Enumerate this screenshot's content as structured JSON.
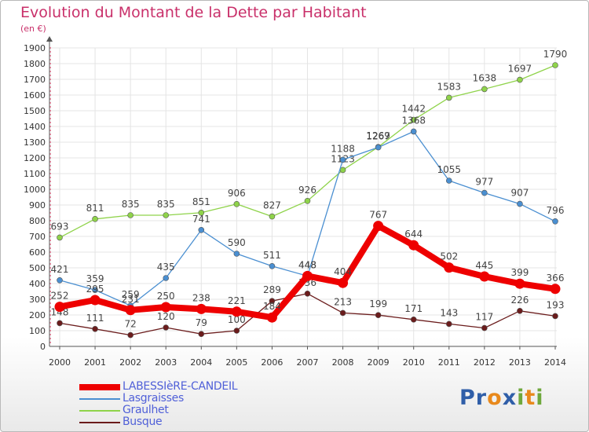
{
  "header": {
    "title": "Evolution du Montant de la Dette par Habitant",
    "unit": "(en €)"
  },
  "logo": {
    "text": "Proxiti",
    "colors": [
      "#2f5ea8",
      "#2f5ea8",
      "#e8891c",
      "#2f5ea8",
      "#6fa83c",
      "#e8891c",
      "#6fa83c"
    ]
  },
  "chart_data": {
    "type": "line",
    "title": "Evolution du Montant de la Dette par Habitant",
    "ylabel": "(en €)",
    "xlabel": "",
    "x": [
      "2000",
      "2001",
      "2002",
      "2003",
      "2004",
      "2005",
      "2006",
      "2007",
      "2008",
      "2009",
      "2010",
      "2011",
      "2012",
      "2013",
      "2014"
    ],
    "ylim": [
      0,
      1900
    ],
    "yticks": [
      0,
      100,
      200,
      300,
      400,
      500,
      600,
      700,
      800,
      900,
      1000,
      1100,
      1200,
      1300,
      1400,
      1500,
      1600,
      1700,
      1800,
      1900
    ],
    "grid": true,
    "legend_position": "bottom-left",
    "series": [
      {
        "name": "Busque",
        "color": "#6b1c1c",
        "values": [
          148,
          111,
          72,
          120,
          79,
          100,
          289,
          336,
          213,
          199,
          171,
          143,
          117,
          226,
          193
        ],
        "labels": [
          "148",
          "111",
          "72",
          "120",
          "79",
          "100",
          "289",
          "336",
          "213",
          "199",
          "171",
          "143",
          "117",
          "226",
          "193"
        ]
      },
      {
        "name": "Graulhet",
        "color": "#8fd34a",
        "values": [
          693,
          811,
          835,
          835,
          851,
          906,
          827,
          926,
          1123,
          1269,
          1442,
          1583,
          1638,
          1697,
          1790
        ],
        "labels": [
          "693",
          "811",
          "835",
          "835",
          "851",
          "906",
          "827",
          "926",
          "1123",
          "1269",
          "1442",
          "1583",
          "1638",
          "1697",
          "1790"
        ]
      },
      {
        "name": "Lasgraisses",
        "color": "#4a8fd1",
        "values": [
          421,
          359,
          259,
          435,
          741,
          590,
          511,
          448,
          1188,
          1267,
          1368,
          1055,
          977,
          907,
          796
        ],
        "labels": [
          "421",
          "359",
          "259",
          "435",
          "741",
          "590",
          "511",
          "448",
          "1188",
          "1267",
          "1368",
          "1055",
          "977",
          "907",
          "796"
        ]
      },
      {
        "name": "LABESSIèRE-CANDEIL",
        "color": "#ee0000",
        "values": [
          252,
          295,
          231,
          250,
          238,
          221,
          184,
          448,
          404,
          767,
          644,
          502,
          445,
          399,
          366
        ],
        "labels": [
          "252",
          "295",
          "231",
          "250",
          "238",
          "221",
          "184",
          "448",
          "404",
          "767",
          "644",
          "502",
          "445",
          "399",
          "366"
        ]
      }
    ],
    "legend_order": [
      "LABESSIèRE-CANDEIL",
      "Lasgraisses",
      "Graulhet",
      "Busque"
    ]
  }
}
